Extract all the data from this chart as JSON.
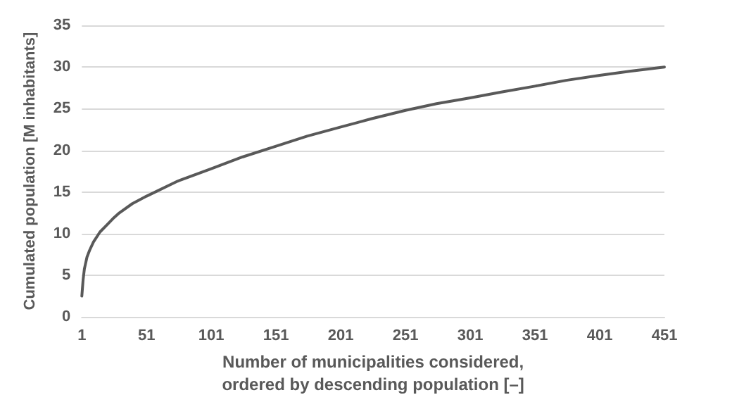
{
  "chart_data": {
    "type": "line",
    "xlabel": "Number of municipalities considered,\nordered by descending population [–]",
    "ylabel": "Cumulated population [M inhabitants]",
    "x": [
      1,
      2,
      3,
      5,
      7,
      10,
      15,
      20,
      25,
      30,
      40,
      51,
      75,
      101,
      125,
      151,
      175,
      201,
      225,
      251,
      275,
      301,
      325,
      351,
      375,
      401,
      425,
      451
    ],
    "series": [
      {
        "color": "#595959",
        "values": [
          2.5,
          4.5,
          5.8,
          7.2,
          8.0,
          9.0,
          10.2,
          11.0,
          11.8,
          12.5,
          13.6,
          14.5,
          16.3,
          17.8,
          19.2,
          20.5,
          21.7,
          22.8,
          23.8,
          24.8,
          25.6,
          26.3,
          27.0,
          27.7,
          28.4,
          29.0,
          29.5,
          30.0
        ]
      }
    ],
    "xlim": [
      1,
      451
    ],
    "xticks": [
      1,
      51,
      101,
      151,
      201,
      251,
      301,
      351,
      401,
      451
    ],
    "ylim": [
      0,
      35
    ],
    "yticks": [
      0,
      5,
      10,
      15,
      20,
      25,
      30,
      35
    ],
    "grid": "y",
    "marker": "none",
    "line_style": "solid"
  }
}
